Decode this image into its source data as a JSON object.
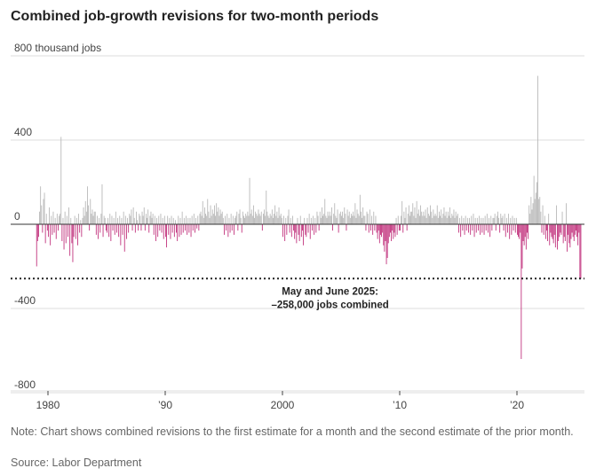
{
  "title": "Combined job-growth revisions for two-month periods",
  "note": "Note: Chart shows combined revisions to the first estimate for a month and the second estimate of the prior month.",
  "source": "Source: Labor Department",
  "colors": {
    "positive": "#b9b9b9",
    "negative": "#c2347e",
    "grid": "#dddddd",
    "zero": "#333333",
    "reference": "#222222"
  },
  "chart_data": {
    "type": "bar",
    "title": "Combined job-growth revisions for two-month periods",
    "ylabel": "800 thousand jobs",
    "unit": "thousand jobs",
    "ylim": [
      -800,
      800
    ],
    "xlim": [
      1979.0,
      2025.9
    ],
    "y_ticks": [
      {
        "value": 800,
        "label": "800 thousand jobs"
      },
      {
        "value": 400,
        "label": "400"
      },
      {
        "value": 0,
        "label": "0"
      },
      {
        "value": -400,
        "label": "-400"
      },
      {
        "value": -800,
        "label": "-800"
      }
    ],
    "x_ticks": [
      {
        "value": 1980,
        "label": "1980"
      },
      {
        "value": 1990,
        "label": "’90"
      },
      {
        "value": 2000,
        "label": "2000"
      },
      {
        "value": 2010,
        "label": "’10"
      },
      {
        "value": 2020,
        "label": "’20"
      }
    ],
    "reference_line": {
      "value": -258
    },
    "annotation": {
      "lines": [
        "May and June 2025:",
        "–258,000 jobs combined"
      ],
      "x": 2003
    },
    "series": [
      {
        "values_by_year": [
          {
            "year": 1979,
            "values": [
              -200,
              -80,
              -60,
              60,
              180,
              90,
              -40,
              120,
              150,
              -90,
              50,
              -30
            ]
          },
          {
            "year": 1980,
            "values": [
              -60,
              80,
              -100,
              40,
              -50,
              60,
              -40,
              30,
              -70,
              50,
              -30,
              40
            ]
          },
          {
            "year": 1981,
            "values": [
              50,
              415,
              -80,
              30,
              -120,
              60,
              -90,
              40,
              -60,
              80,
              -150,
              30
            ]
          },
          {
            "year": 1982,
            "values": [
              -90,
              -180,
              -60,
              40,
              -70,
              30,
              -100,
              50,
              -40,
              20,
              -60,
              30
            ]
          },
          {
            "year": 1983,
            "values": [
              80,
              40,
              110,
              60,
              180,
              90,
              -30,
              120,
              50,
              70,
              40,
              60
            ]
          },
          {
            "year": 1984,
            "values": [
              60,
              -50,
              40,
              -70,
              30,
              -40,
              50,
              190,
              -60,
              40,
              30,
              -30
            ]
          },
          {
            "year": 1985,
            "values": [
              -40,
              30,
              -60,
              50,
              -80,
              40,
              -30,
              30,
              -50,
              60,
              -40,
              30
            ]
          },
          {
            "year": 1986,
            "values": [
              -60,
              40,
              -100,
              30,
              -50,
              60,
              -130,
              40,
              -70,
              30,
              -40,
              50
            ]
          },
          {
            "year": 1987,
            "values": [
              40,
              70,
              -30,
              80,
              30,
              -40,
              60,
              20,
              -30,
              50,
              40,
              -30
            ]
          },
          {
            "year": 1988,
            "values": [
              60,
              40,
              80,
              -30,
              50,
              30,
              70,
              -40,
              40,
              60,
              30,
              50
            ]
          },
          {
            "year": 1989,
            "values": [
              -50,
              40,
              -80,
              30,
              -60,
              40,
              -30,
              50,
              -40,
              30,
              -70,
              40
            ]
          },
          {
            "year": 1990,
            "values": [
              -60,
              -110,
              40,
              -50,
              30,
              -70,
              40,
              -40,
              30,
              -60,
              20,
              -40
            ]
          },
          {
            "year": 1991,
            "values": [
              -80,
              40,
              -60,
              30,
              -50,
              60,
              -40,
              30,
              -30,
              40,
              -50,
              30
            ]
          },
          {
            "year": 1992,
            "values": [
              -40,
              30,
              -60,
              40,
              -30,
              50,
              -40,
              30,
              -20,
              40,
              -30,
              50
            ]
          },
          {
            "year": 1993,
            "values": [
              60,
              40,
              110,
              30,
              80,
              50,
              40,
              120,
              60,
              30,
              90,
              40
            ]
          },
          {
            "year": 1994,
            "values": [
              70,
              50,
              90,
              40,
              100,
              60,
              80,
              40,
              70,
              50,
              60,
              30
            ]
          },
          {
            "year": 1995,
            "values": [
              -50,
              40,
              -30,
              50,
              -60,
              30,
              -40,
              50,
              -30,
              40,
              -50,
              30
            ]
          },
          {
            "year": 1996,
            "values": [
              40,
              60,
              -30,
              50,
              70,
              30,
              -40,
              60,
              40,
              30,
              50,
              40
            ]
          },
          {
            "year": 1997,
            "values": [
              60,
              40,
              220,
              50,
              70,
              40,
              90,
              30,
              60,
              50,
              40,
              70
            ]
          },
          {
            "year": 1998,
            "values": [
              50,
              40,
              60,
              -30,
              50,
              70,
              40,
              160,
              60,
              40,
              30,
              50
            ]
          },
          {
            "year": 1999,
            "values": [
              40,
              70,
              30,
              50,
              90,
              40,
              60,
              30,
              80,
              40,
              50,
              30
            ]
          },
          {
            "year": 2000,
            "values": [
              -60,
              40,
              -80,
              30,
              -50,
              40,
              70,
              -40,
              30,
              -60,
              40,
              -30
            ]
          },
          {
            "year": 2001,
            "values": [
              -70,
              -40,
              -90,
              30,
              -50,
              -80,
              40,
              -60,
              -30,
              -100,
              30,
              -50
            ]
          },
          {
            "year": 2002,
            "values": [
              -60,
              30,
              -40,
              50,
              -70,
              30,
              -30,
              40,
              -50,
              30,
              -40,
              60
            ]
          },
          {
            "year": 2003,
            "values": [
              40,
              -30,
              60,
              30,
              80,
              40,
              50,
              120,
              40,
              30,
              60,
              40
            ]
          },
          {
            "year": 2004,
            "values": [
              60,
              40,
              80,
              -30,
              50,
              100,
              40,
              30,
              70,
              -40,
              50,
              60
            ]
          },
          {
            "year": 2005,
            "values": [
              40,
              60,
              30,
              80,
              50,
              -30,
              70,
              40,
              60,
              30,
              50,
              40
            ]
          },
          {
            "year": 2006,
            "values": [
              60,
              40,
              100,
              30,
              70,
              50,
              40,
              140,
              60,
              30,
              80,
              40
            ]
          },
          {
            "year": 2007,
            "values": [
              40,
              -30,
              60,
              50,
              -40,
              70,
              -30,
              40,
              -50,
              60,
              -30,
              40
            ]
          },
          {
            "year": 2008,
            "values": [
              -40,
              -70,
              -30,
              -90,
              -50,
              -60,
              -40,
              -100,
              -130,
              -80,
              -190,
              -160
            ]
          },
          {
            "year": 2009,
            "values": [
              -90,
              -60,
              -40,
              -80,
              -30,
              -70,
              -40,
              -60,
              30,
              -50,
              40,
              -30
            ]
          },
          {
            "year": 2010,
            "values": [
              -30,
              40,
              110,
              -40,
              60,
              30,
              80,
              -30,
              50,
              90,
              40,
              60
            ]
          },
          {
            "year": 2011,
            "values": [
              60,
              100,
              40,
              80,
              30,
              110,
              50,
              70,
              40,
              90,
              60,
              40
            ]
          },
          {
            "year": 2012,
            "values": [
              60,
              40,
              70,
              30,
              80,
              50,
              40,
              90,
              60,
              30,
              70,
              40
            ]
          },
          {
            "year": 2013,
            "values": [
              50,
              40,
              90,
              30,
              60,
              40,
              70,
              30,
              50,
              80,
              40,
              60
            ]
          },
          {
            "year": 2014,
            "values": [
              30,
              60,
              40,
              80,
              30,
              50,
              40,
              70,
              30,
              60,
              40,
              50
            ]
          },
          {
            "year": 2015,
            "values": [
              -40,
              30,
              -60,
              40,
              -30,
              30,
              -50,
              40,
              -30,
              30,
              -40,
              30
            ]
          },
          {
            "year": 2016,
            "values": [
              -50,
              40,
              -30,
              50,
              -60,
              30,
              -40,
              30,
              -30,
              40,
              -50,
              30
            ]
          },
          {
            "year": 2017,
            "values": [
              -40,
              30,
              -50,
              40,
              -30,
              50,
              -40,
              30,
              -60,
              40,
              -30,
              30
            ]
          },
          {
            "year": 2018,
            "values": [
              30,
              50,
              -30,
              40,
              60,
              30,
              -40,
              50,
              30,
              40,
              -30,
              50
            ]
          },
          {
            "year": 2019,
            "values": [
              -60,
              30,
              -40,
              50,
              -70,
              30,
              -50,
              40,
              -30,
              30,
              -40,
              30
            ]
          },
          {
            "year": 2020,
            "values": [
              -50,
              -60,
              -70,
              -40,
              -640,
              -210,
              -80,
              -100,
              -60,
              -120,
              -40,
              -70
            ]
          },
          {
            "year": 2021,
            "values": [
              90,
              50,
              130,
              70,
              100,
              230,
              120,
              150,
              200,
              705,
              120,
              130
            ]
          },
          {
            "year": 2022,
            "values": [
              60,
              -40,
              90,
              -50,
              40,
              -70,
              -30,
              -80,
              50,
              -100,
              -40,
              -60
            ]
          },
          {
            "year": 2023,
            "values": [
              -70,
              -90,
              -50,
              -110,
              90,
              -120,
              -80,
              -60,
              -40,
              -50,
              60,
              -90
            ]
          },
          {
            "year": 2024,
            "values": [
              -60,
              -80,
              100,
              -130,
              -50,
              -90,
              -110,
              -70,
              -40,
              -60,
              -80,
              -50
            ]
          },
          {
            "year": 2025,
            "values": [
              -30,
              -60,
              -100,
              -40,
              -258,
              -258
            ]
          }
        ]
      }
    ]
  }
}
